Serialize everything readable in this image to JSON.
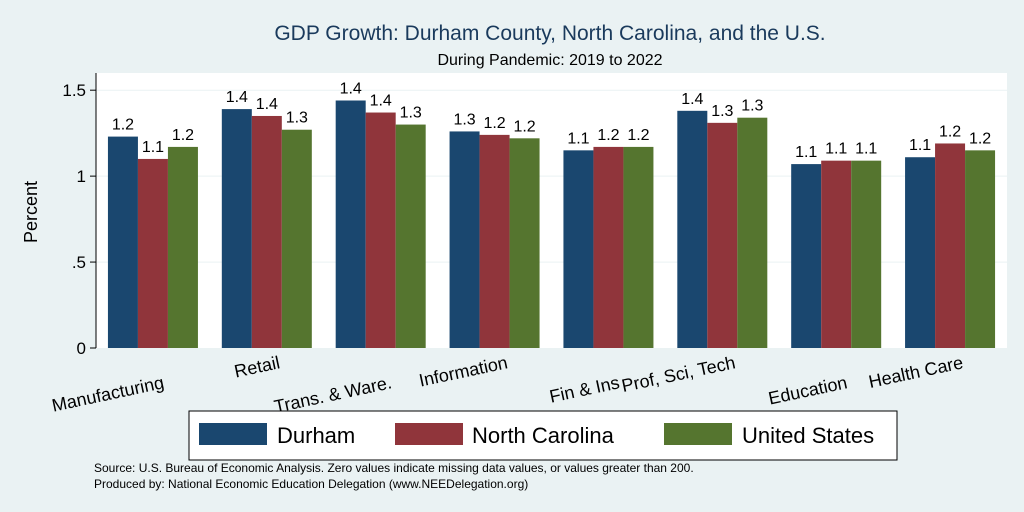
{
  "chart_data": {
    "type": "bar",
    "title": "GDP Growth: Durham County, North Carolina, and the U.S.",
    "subtitle": "During Pandemic: 2019 to 2022",
    "ylabel": "Percent",
    "ylim": [
      0,
      1.6
    ],
    "yticks": [
      0,
      0.5,
      1,
      1.5
    ],
    "ytick_labels": [
      "0",
      ".5",
      "1",
      "1.5"
    ],
    "grid": true,
    "legend_position": "bottom",
    "categories": [
      "Manufacturing",
      "Retail",
      "Trans. & Ware.",
      "Information",
      "Fin & Ins",
      "Prof, Sci, Tech",
      "Education",
      "Health Care"
    ],
    "series": [
      {
        "name": "Durham",
        "color": "#1a476f",
        "values": [
          1.23,
          1.39,
          1.44,
          1.26,
          1.15,
          1.38,
          1.07,
          1.11
        ],
        "labels": [
          "1.2",
          "1.4",
          "1.4",
          "1.3",
          "1.1",
          "1.4",
          "1.1",
          "1.1"
        ]
      },
      {
        "name": "North Carolina",
        "color": "#90353b",
        "values": [
          1.1,
          1.35,
          1.37,
          1.24,
          1.17,
          1.31,
          1.09,
          1.19
        ],
        "labels": [
          "1.1",
          "1.4",
          "1.4",
          "1.2",
          "1.2",
          "1.3",
          "1.1",
          "1.2"
        ]
      },
      {
        "name": "United States",
        "color": "#55752f",
        "values": [
          1.17,
          1.27,
          1.3,
          1.22,
          1.17,
          1.34,
          1.09,
          1.15
        ],
        "labels": [
          "1.2",
          "1.3",
          "1.3",
          "1.2",
          "1.2",
          "1.3",
          "1.1",
          "1.2"
        ]
      }
    ],
    "notes": [
      "Source: U.S. Bureau of Economic Analysis. Zero values indicate missing data values, or values greater than 200.",
      "Produced by: National Economic Education Delegation (www.NEEDelegation.org)"
    ]
  }
}
